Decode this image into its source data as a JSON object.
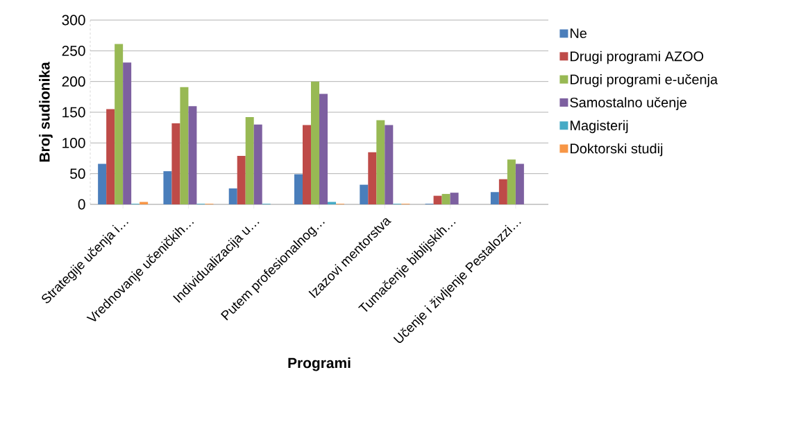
{
  "chart_data": {
    "type": "bar",
    "xlabel": "Programi",
    "ylabel": "Broj sudionika",
    "categories": [
      "Strategije učenja i…",
      "Vrednovanje učeničkih…",
      "Individualizacija u…",
      "Putem profesionalnog…",
      "Izazovi mentorstva",
      "Tumačenje biblijskih…",
      "Učenje i življenje Pestalozzi…"
    ],
    "series": [
      {
        "name": "Ne",
        "color": "#4a7ebb",
        "values": [
          66,
          54,
          26,
          49,
          32,
          1,
          20
        ]
      },
      {
        "name": "Drugi programi AZOO",
        "color": "#be4b48",
        "values": [
          155,
          132,
          79,
          129,
          85,
          14,
          41
        ]
      },
      {
        "name": "Drugi programi e-učenja",
        "color": "#98b954",
        "values": [
          261,
          191,
          142,
          200,
          137,
          17,
          73
        ]
      },
      {
        "name": "Samostalno učenje",
        "color": "#7d60a0",
        "values": [
          231,
          160,
          130,
          180,
          129,
          19,
          66
        ]
      },
      {
        "name": "Magisterij",
        "color": "#46aac5",
        "values": [
          1,
          1,
          1,
          4,
          1,
          0,
          0
        ]
      },
      {
        "name": "Doktorski studij",
        "color": "#f79646",
        "values": [
          4,
          1,
          0,
          1,
          1,
          0,
          0
        ]
      }
    ],
    "ylim": [
      0,
      300
    ],
    "yticks": [
      0,
      50,
      100,
      150,
      200,
      250,
      300
    ],
    "grid": "y",
    "legend": "right"
  }
}
